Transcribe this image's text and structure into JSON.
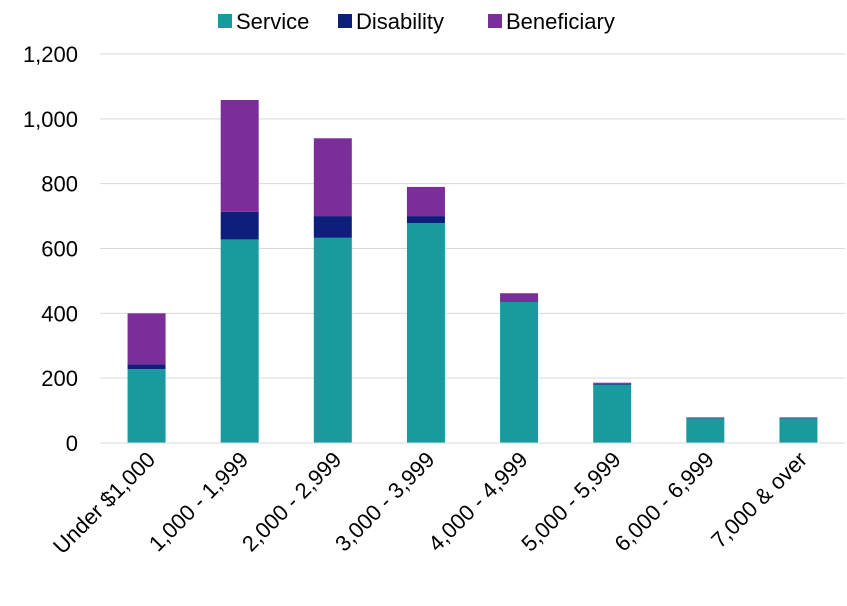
{
  "chart_data": {
    "type": "bar",
    "stacked": true,
    "categories": [
      "Under $1,000",
      "1,000 - 1,999",
      "2,000 - 2,999",
      "3,000 - 3,999",
      "4,000 - 4,999",
      "5,000 - 5,999",
      "6,000 - 6,999",
      "7,000 & over"
    ],
    "series": [
      {
        "name": "Service",
        "color": "#1a9a9e",
        "values": [
          228,
          628,
          633,
          678,
          436,
          180,
          76,
          76
        ]
      },
      {
        "name": "Disability",
        "color": "#0d1f7a",
        "values": [
          14,
          85,
          67,
          22,
          2,
          3,
          1,
          1
        ]
      },
      {
        "name": "Beneficiary",
        "color": "#7b2d99",
        "values": [
          158,
          345,
          240,
          90,
          24,
          3,
          2,
          2
        ]
      }
    ],
    "ylim": [
      0,
      1200
    ],
    "yticks": [
      0,
      200,
      400,
      600,
      800,
      1000,
      1200
    ],
    "ytick_labels": [
      "0",
      "200",
      "400",
      "600",
      "800",
      "1,000",
      "1,200"
    ],
    "legend_position": "top",
    "grid": true,
    "title": "",
    "xlabel": "",
    "ylabel": ""
  }
}
